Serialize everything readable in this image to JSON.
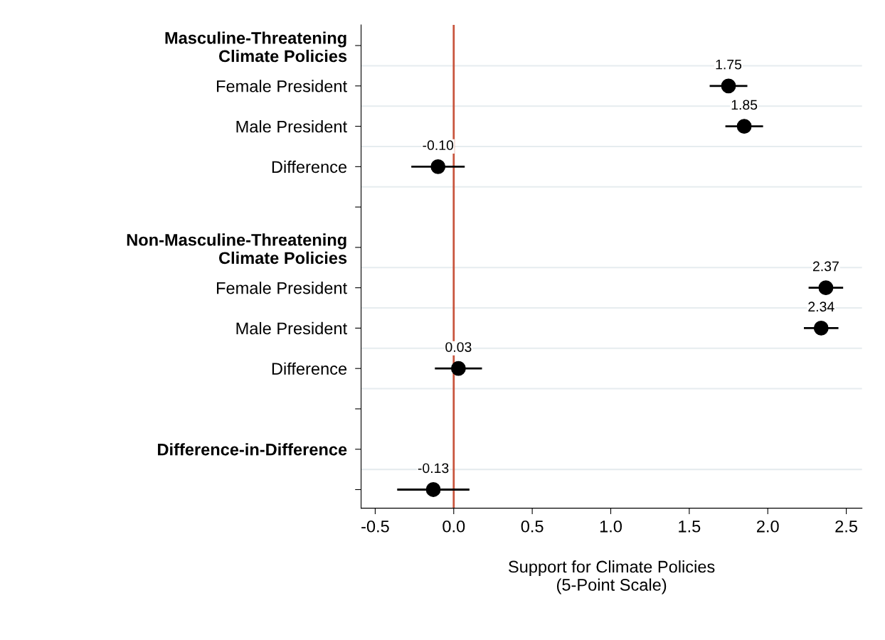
{
  "chart_data": {
    "type": "scatter",
    "orientation": "horizontal",
    "xlabel": "Support for Climate Policies\n(5-Point Scale)",
    "categories": [
      "Masculine-Threatening\nClimate Policies",
      "Female President",
      "Male President",
      "Difference",
      null,
      "Non-Masculine-Threatening\nClimate Policies",
      "Female President",
      "Male President",
      "Difference",
      null,
      "Difference-in-Difference",
      null
    ],
    "series": [
      {
        "color": "#000000",
        "values": [
          null,
          1.75,
          1.85,
          -0.1,
          null,
          null,
          2.37,
          2.34,
          0.03,
          null,
          null,
          -0.13
        ],
        "errors": [
          null,
          0.12,
          0.12,
          0.17,
          null,
          null,
          0.11,
          0.11,
          0.15,
          null,
          null,
          0.23
        ],
        "value_labels": [
          null,
          "1.75",
          "1.85",
          "-0.10",
          null,
          null,
          "2.37",
          "2.34",
          "0.03",
          null,
          null,
          "-0.13"
        ]
      }
    ],
    "xlim": [
      -0.59,
      2.6
    ],
    "xticks": [
      {
        "value": -0.5,
        "label": "-0.5"
      },
      {
        "value": 0,
        "label": "0.0"
      },
      {
        "value": 0.5,
        "label": "0.5"
      },
      {
        "value": 1,
        "label": "1.0"
      },
      {
        "value": 1.5,
        "label": "1.5"
      },
      {
        "value": 2,
        "label": "2.0"
      },
      {
        "value": 2.5,
        "label": "2.5"
      }
    ],
    "ref_lines": [
      {
        "axis": "x",
        "value": 0,
        "color": "#c8553d",
        "line_style": "solid"
      }
    ],
    "grid": "y",
    "marker": "circle",
    "legend": false
  }
}
